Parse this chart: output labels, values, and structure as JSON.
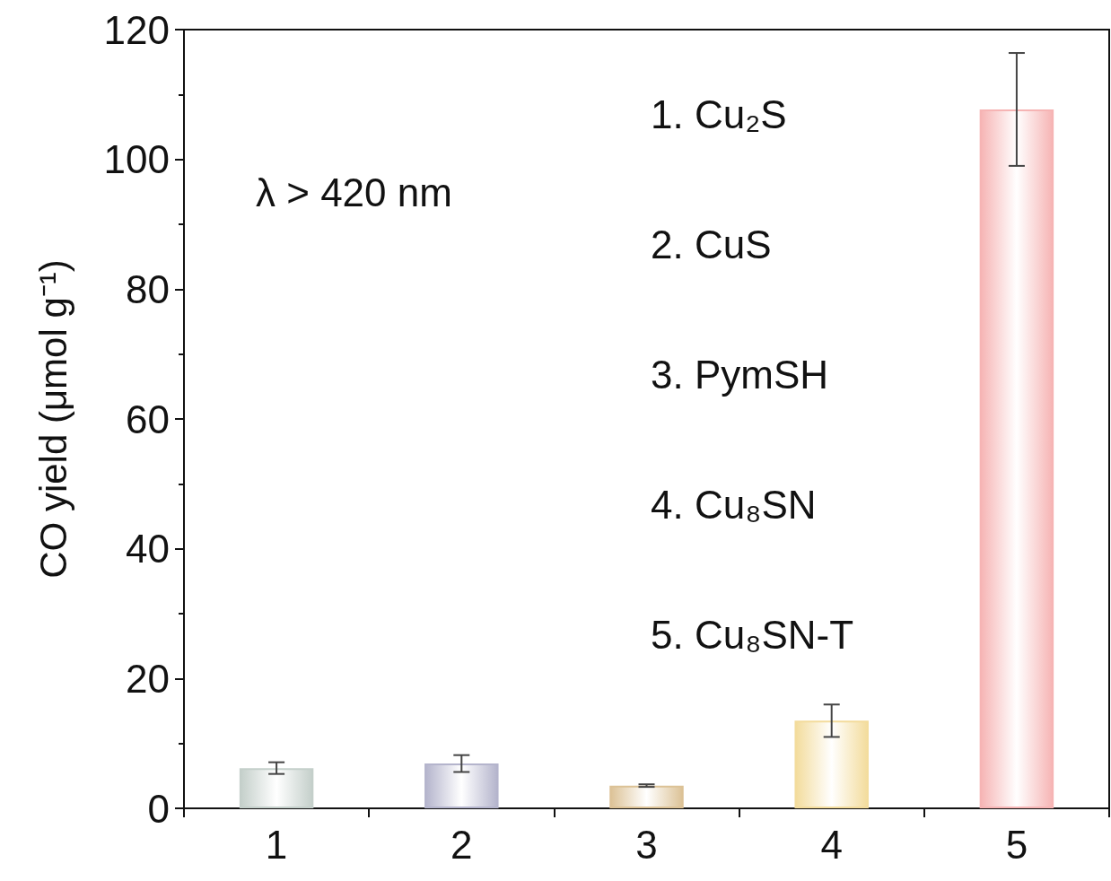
{
  "chart_data": {
    "type": "bar",
    "ylabel": "CO yield (μmol g⁻¹)",
    "categories": [
      "1",
      "2",
      "3",
      "4",
      "5"
    ],
    "values": [
      6.2,
      6.9,
      3.5,
      13.5,
      107.7
    ],
    "errors": [
      0.9,
      1.3,
      0.2,
      2.5,
      8.7
    ],
    "colors": [
      "#c4cfca",
      "#b4b4cc",
      "#dcc296",
      "#f3dc9c",
      "#f6b4b4"
    ],
    "ylim": [
      0,
      120
    ],
    "yticks": [
      0,
      20,
      40,
      60,
      80,
      100,
      120
    ],
    "grid": false,
    "annotations": [
      "λ > 420 nm",
      "1. Cu₂S",
      "2. CuS",
      "3. PymSH",
      "4. Cu₈SN",
      "5. Cu₈SN-T"
    ]
  }
}
